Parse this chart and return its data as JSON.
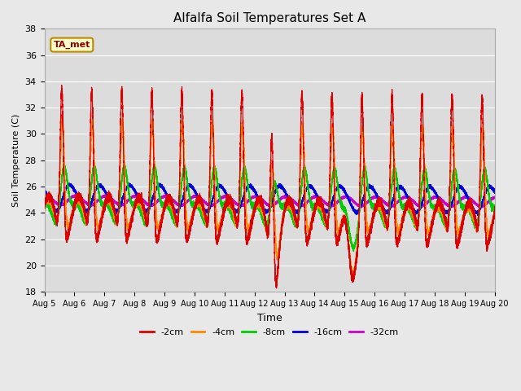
{
  "title": "Alfalfa Soil Temperatures Set A",
  "xlabel": "Time",
  "ylabel": "Soil Temperature (C)",
  "ylim": [
    18,
    38
  ],
  "xlim": [
    0,
    15
  ],
  "plot_bg": "#dcdcdc",
  "fig_bg": "#e8e8e8",
  "grid_color": "#ffffff",
  "series": {
    "neg2cm": {
      "color": "#dd0000",
      "label": "-2cm",
      "lw": 1.0
    },
    "neg4cm": {
      "color": "#ff8800",
      "label": "-4cm",
      "lw": 1.0
    },
    "neg8cm": {
      "color": "#00cc00",
      "label": "-8cm",
      "lw": 1.0
    },
    "neg16cm": {
      "color": "#0000dd",
      "label": "-16cm",
      "lw": 1.0
    },
    "neg32cm": {
      "color": "#cc00cc",
      "label": "-32cm",
      "lw": 1.2
    }
  },
  "ta_met_label": "TA_met",
  "ta_met_color": "#880000",
  "tick_labels": [
    "Aug 5",
    "Aug 6",
    "Aug 7",
    "Aug 8",
    "Aug 9",
    "Aug 10",
    "Aug 11",
    "Aug 12",
    "Aug 13",
    "Aug 14",
    "Aug 15",
    "Aug 16",
    "Aug 17",
    "Aug 18",
    "Aug 19",
    "Aug 20"
  ],
  "yticks": [
    18,
    20,
    22,
    24,
    26,
    28,
    30,
    32,
    34,
    36,
    38
  ]
}
